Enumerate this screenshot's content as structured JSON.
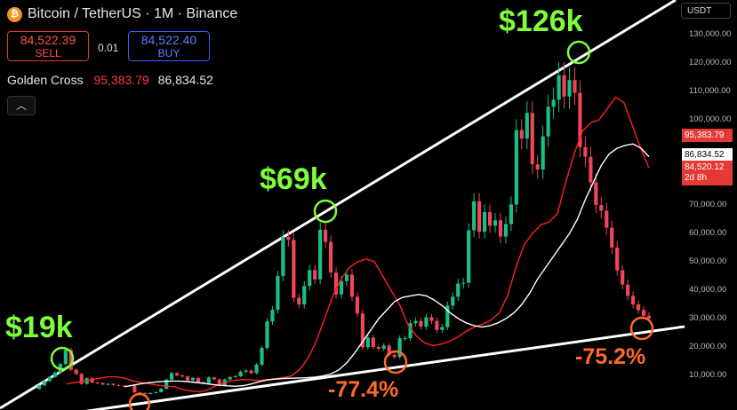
{
  "header": {
    "coin_icon": "bitcoin-icon",
    "symbol_title": "Bitcoin / TetherUS · 1M · Binance"
  },
  "trade": {
    "sell_price": "84,522.39",
    "sell_label": "SELL",
    "spread": "0.01",
    "buy_price": "84,522.40",
    "buy_label": "BUY"
  },
  "indicator": {
    "name": "Golden Cross",
    "value1": "95,383.79",
    "value2": "86,834.52"
  },
  "currency": "USDT",
  "price_tags": {
    "ma1": "95,383.79",
    "ma2": "86,834.52",
    "last": "84,520.12",
    "countdown": "2d 8h"
  },
  "annotations": {
    "peak1": "$19k",
    "peak2": "$69k",
    "peak3": "$126k",
    "dd1": "-77.4%",
    "dd2": "-75.2%"
  },
  "colors": {
    "up": "#1bbf84",
    "down": "#f0455a",
    "ma_red": "#ff2020",
    "ma_white": "#ffffff",
    "green_label": "#7dff3a",
    "orange_label": "#ff6a2a"
  },
  "chart_data": {
    "type": "candlestick",
    "yscale": "linear",
    "ylim": [
      6000,
      140000
    ],
    "y_ticks": [
      "130,000.00",
      "120,000.00",
      "110,000.00",
      "100,000.00",
      "70,000.00",
      "60,000.00",
      "50,000.00",
      "40,000.00",
      "30,000.00",
      "20,000.00",
      "10,000.00"
    ],
    "candles": [
      [
        5200,
        6500
      ],
      [
        6500,
        8000
      ],
      [
        8000,
        9500
      ],
      [
        9500,
        11000
      ],
      [
        11000,
        14000
      ],
      [
        14000,
        19000
      ],
      [
        19000,
        12000
      ],
      [
        12000,
        10500
      ],
      [
        10500,
        7000
      ],
      [
        7000,
        9000
      ],
      [
        9000,
        7500
      ],
      [
        7500,
        7300
      ],
      [
        7300,
        6800
      ],
      [
        6800,
        7000
      ],
      [
        7000,
        6600
      ],
      [
        6600,
        6400
      ],
      [
        6400,
        6300
      ],
      [
        6300,
        6400
      ],
      [
        6400,
        4000
      ],
      [
        4000,
        3800
      ],
      [
        3800,
        3450
      ],
      [
        3450,
        3800
      ],
      [
        3800,
        4100
      ],
      [
        4100,
        5300
      ],
      [
        5300,
        8500
      ],
      [
        8500,
        10800
      ],
      [
        10800,
        10000
      ],
      [
        10000,
        9600
      ],
      [
        9600,
        8300
      ],
      [
        8300,
        9100
      ],
      [
        9100,
        7600
      ],
      [
        7600,
        7200
      ],
      [
        7200,
        9300
      ],
      [
        9300,
        8600
      ],
      [
        8600,
        6400
      ],
      [
        6400,
        8600
      ],
      [
        8600,
        9400
      ],
      [
        9400,
        9700
      ],
      [
        9700,
        11300
      ],
      [
        11300,
        11700
      ],
      [
        11700,
        10800
      ],
      [
        10800,
        13800
      ],
      [
        13800,
        19700
      ],
      [
        19700,
        29000
      ],
      [
        29000,
        33100
      ],
      [
        33100,
        45000
      ],
      [
        45000,
        58800
      ],
      [
        58800,
        57700
      ],
      [
        57700,
        37300
      ],
      [
        37300,
        35000
      ],
      [
        35000,
        41500
      ],
      [
        41500,
        47100
      ],
      [
        47100,
        43800
      ],
      [
        43800,
        61300
      ],
      [
        61300,
        57000
      ],
      [
        57000,
        46200
      ],
      [
        46200,
        38500
      ],
      [
        38500,
        43200
      ],
      [
        43200,
        45500
      ],
      [
        45500,
        37700
      ],
      [
        37700,
        31800
      ],
      [
        31800,
        19900
      ],
      [
        19900,
        23300
      ],
      [
        23300,
        20000
      ],
      [
        20000,
        19400
      ],
      [
        19400,
        20500
      ],
      [
        20500,
        17200
      ],
      [
        17200,
        16500
      ],
      [
        16500,
        23100
      ],
      [
        23100,
        23100
      ],
      [
        23100,
        28400
      ],
      [
        28400,
        29200
      ],
      [
        29200,
        27200
      ],
      [
        27200,
        30500
      ],
      [
        30500,
        29200
      ],
      [
        29200,
        26000
      ],
      [
        26000,
        27000
      ],
      [
        27000,
        34600
      ],
      [
        34600,
        37700
      ],
      [
        37700,
        42300
      ],
      [
        42300,
        42600
      ],
      [
        42600,
        61100
      ],
      [
        61100,
        71300
      ],
      [
        71300,
        60600
      ],
      [
        60600,
        67500
      ],
      [
        67500,
        62700
      ],
      [
        62700,
        64600
      ],
      [
        64600,
        58900
      ],
      [
        58900,
        63300
      ],
      [
        63300,
        70200
      ],
      [
        70200,
        96400
      ],
      [
        96400,
        93400
      ],
      [
        93400,
        102400
      ],
      [
        102400,
        84300
      ],
      [
        84300,
        82500
      ],
      [
        82500,
        94200
      ],
      [
        94200,
        104600
      ],
      [
        104600,
        107100
      ],
      [
        107100,
        115700
      ],
      [
        115700,
        108200
      ],
      [
        108200,
        114000
      ],
      [
        114000,
        109500
      ],
      [
        109500,
        90400
      ],
      [
        90400,
        87000
      ],
      [
        87000,
        78000
      ],
      [
        78000,
        70000
      ],
      [
        70000,
        68000
      ],
      [
        68000,
        62000
      ],
      [
        62000,
        55000
      ],
      [
        55000,
        47000
      ],
      [
        47000,
        42000
      ],
      [
        42000,
        38000
      ],
      [
        38000,
        35000
      ],
      [
        35000,
        33000
      ],
      [
        33000,
        31000
      ],
      [
        31000,
        30000
      ]
    ],
    "ma_red": [
      7000,
      7500,
      8000,
      8500,
      9000,
      9500,
      9500,
      9000,
      8000,
      7500,
      7000,
      6500,
      6200,
      6000,
      5000,
      4500,
      4200,
      5000,
      6500,
      7500,
      8200,
      8500,
      8400,
      8200,
      8500,
      8800,
      9200,
      9800,
      12000,
      16000,
      22000,
      30000,
      38000,
      44000,
      48000,
      50000,
      51000,
      50000,
      45000,
      40000,
      35000,
      28000,
      24000,
      21500,
      20500,
      21000,
      22000,
      23500,
      25500,
      27000,
      28000,
      29500,
      32000,
      38000,
      48000,
      56000,
      60000,
      63000,
      64000,
      67000,
      78000,
      88000,
      96000,
      99000,
      100000,
      104000,
      108000,
      106000,
      98000,
      90000,
      83000
    ],
    "ma_white": [
      6000,
      6500,
      7000,
      7400,
      7700,
      7900,
      8000,
      8000,
      7800,
      7500,
      7200,
      6800,
      6500,
      6300,
      6200,
      6400,
      7000,
      7800,
      8400,
      8700,
      8900,
      9000,
      9100,
      9200,
      9400,
      9800,
      10500,
      12000,
      14500,
      18000,
      22000,
      26000,
      30000,
      33000,
      36000,
      37500,
      38000,
      38500,
      38000,
      36500,
      34500,
      32000,
      30000,
      28500,
      27500,
      27000,
      27500,
      28500,
      30000,
      32000,
      35000,
      39000,
      44000,
      48000,
      52000,
      56000,
      60000,
      65000,
      72000,
      78000,
      84000,
      88000,
      90000,
      91000,
      91500,
      90000,
      87000
    ]
  }
}
